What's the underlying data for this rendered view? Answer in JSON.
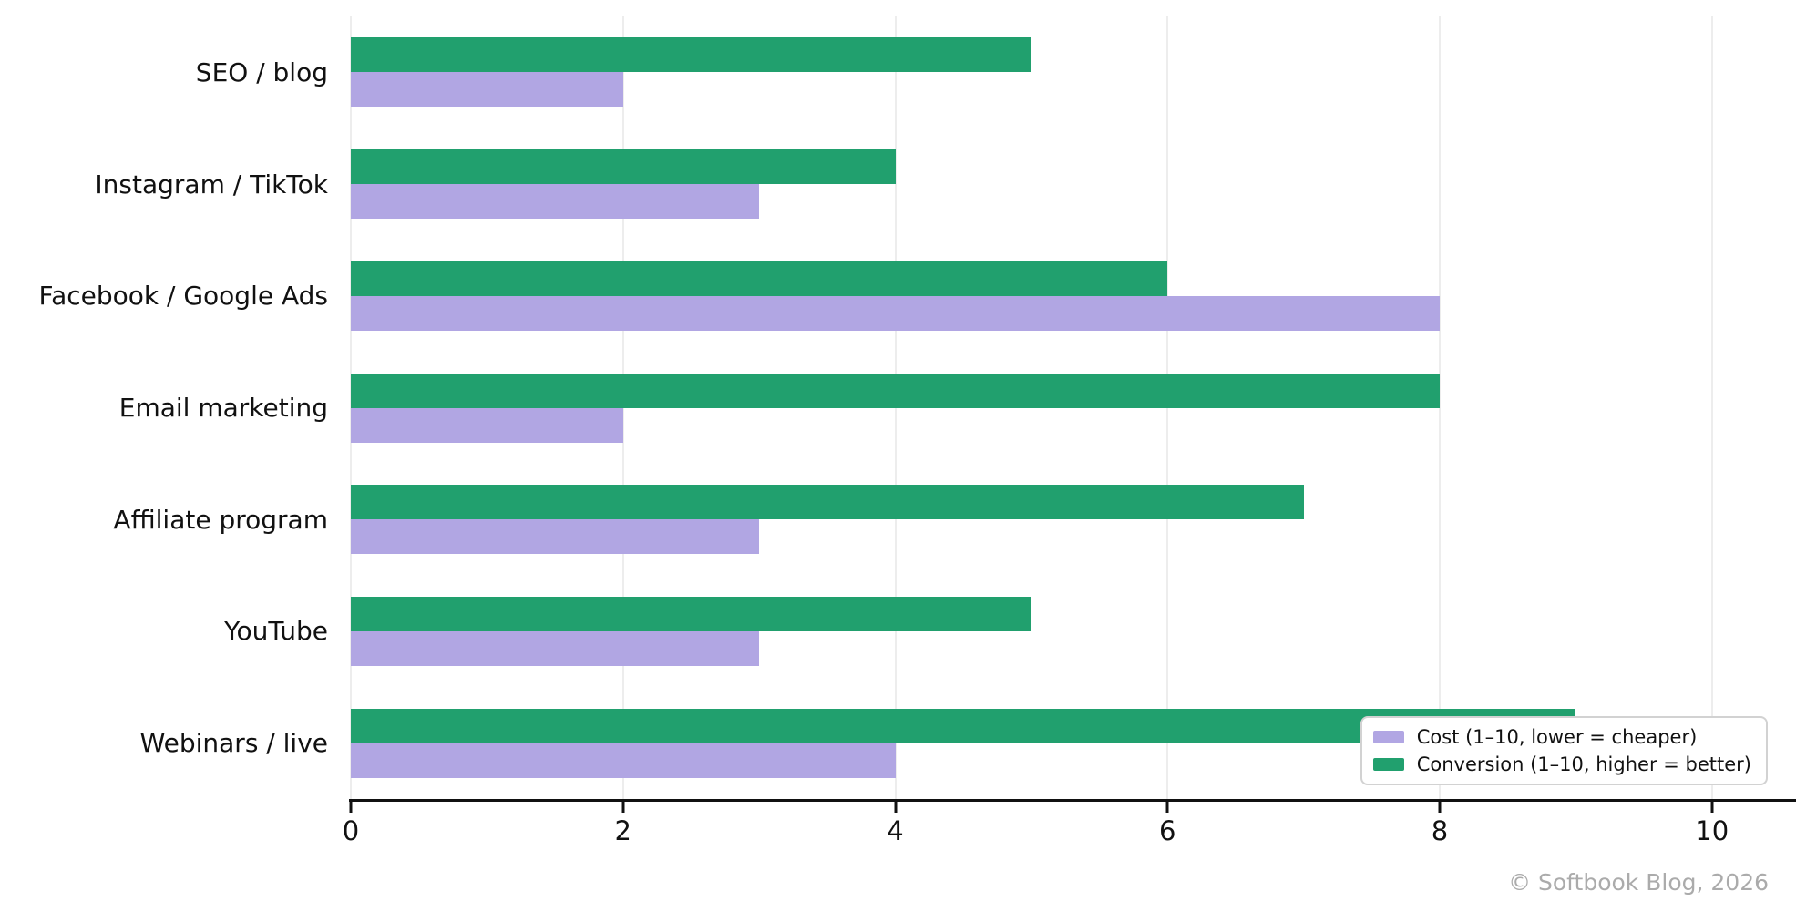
{
  "chart_data": {
    "type": "bar",
    "orientation": "horizontal",
    "title": "",
    "xlabel": "",
    "ylabel": "",
    "categories": [
      "SEO / blog",
      "Instagram / TikTok",
      "Facebook / Google Ads",
      "Email marketing",
      "Affiliate program",
      "YouTube",
      "Webinars / live"
    ],
    "series": [
      {
        "name": "Cost (1–10, lower = cheaper)",
        "color": "#b1a6e3",
        "values": [
          2,
          3,
          8,
          2,
          3,
          3,
          4
        ]
      },
      {
        "name": "Conversion (1–10, higher = better)",
        "color": "#21a06e",
        "values": [
          5,
          4,
          6,
          8,
          7,
          5,
          9
        ]
      }
    ],
    "group_bar_order_top_to_bottom": [
      "Conversion (1–10, higher = better)",
      "Cost (1–10, lower = cheaper)"
    ],
    "xticks": [
      0,
      2,
      4,
      6,
      8,
      10
    ],
    "xlim": [
      0,
      10.41
    ],
    "grid": true,
    "gridline_color": "#ededed",
    "legend_position": "lower right"
  },
  "watermark": "© Softbook Blog, 2026",
  "colors": {
    "cost_purple": "#b1a6e3",
    "conversion_green": "#21a06e",
    "axis": "#111111",
    "watermark_gray": "#ababab"
  }
}
